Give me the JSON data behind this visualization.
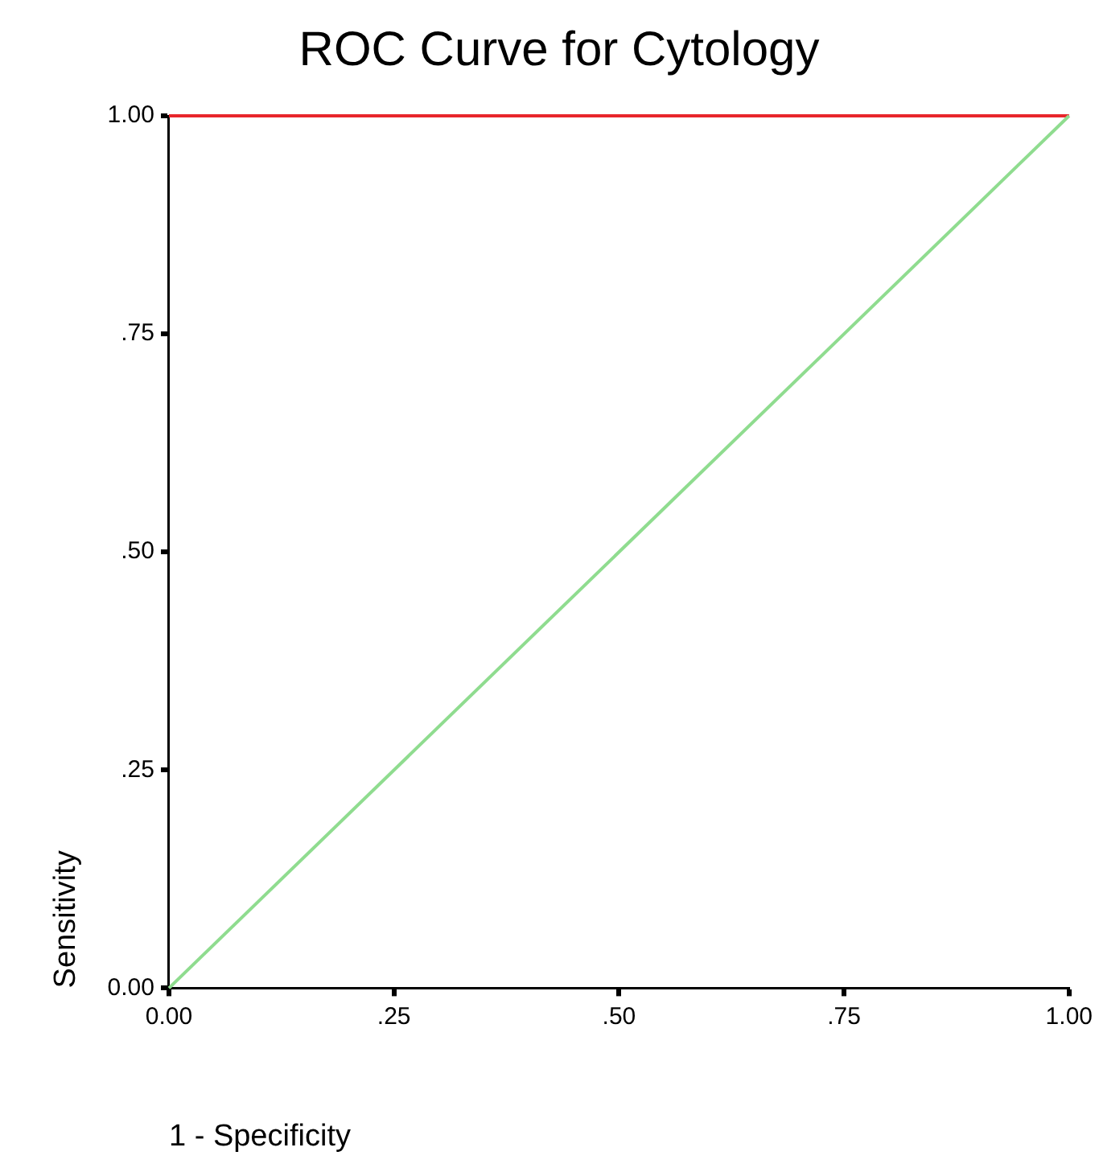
{
  "chart_data": {
    "type": "line",
    "title": "ROC Curve for Cytology",
    "xlabel": "1 - Specificity",
    "ylabel": "Sensitivity",
    "series": [
      {
        "values": [
          0,
          1
        ],
        "color": "#8fdc8f"
      },
      {
        "values": [
          1,
          1
        ],
        "color": "#e8262b"
      }
    ],
    "x": [
      0,
      1
    ],
    "xlim": [
      0,
      1
    ],
    "ylim": [
      0,
      1
    ],
    "xticks": [
      {
        "value": 0,
        "label": "0.00"
      },
      {
        "value": 0.25,
        "label": ".25"
      },
      {
        "value": 0.5,
        "label": ".50"
      },
      {
        "value": 0.75,
        "label": ".75"
      },
      {
        "value": 1,
        "label": "1.00"
      }
    ],
    "yticks": [
      {
        "value": 0,
        "label": "0.00"
      },
      {
        "value": 0.25,
        "label": ".25"
      },
      {
        "value": 0.5,
        "label": ".50"
      },
      {
        "value": 0.75,
        "label": ".75"
      },
      {
        "value": 1,
        "label": "1.00"
      }
    ],
    "grid": false,
    "legend": false,
    "marker": "none",
    "line_style": "solid"
  }
}
